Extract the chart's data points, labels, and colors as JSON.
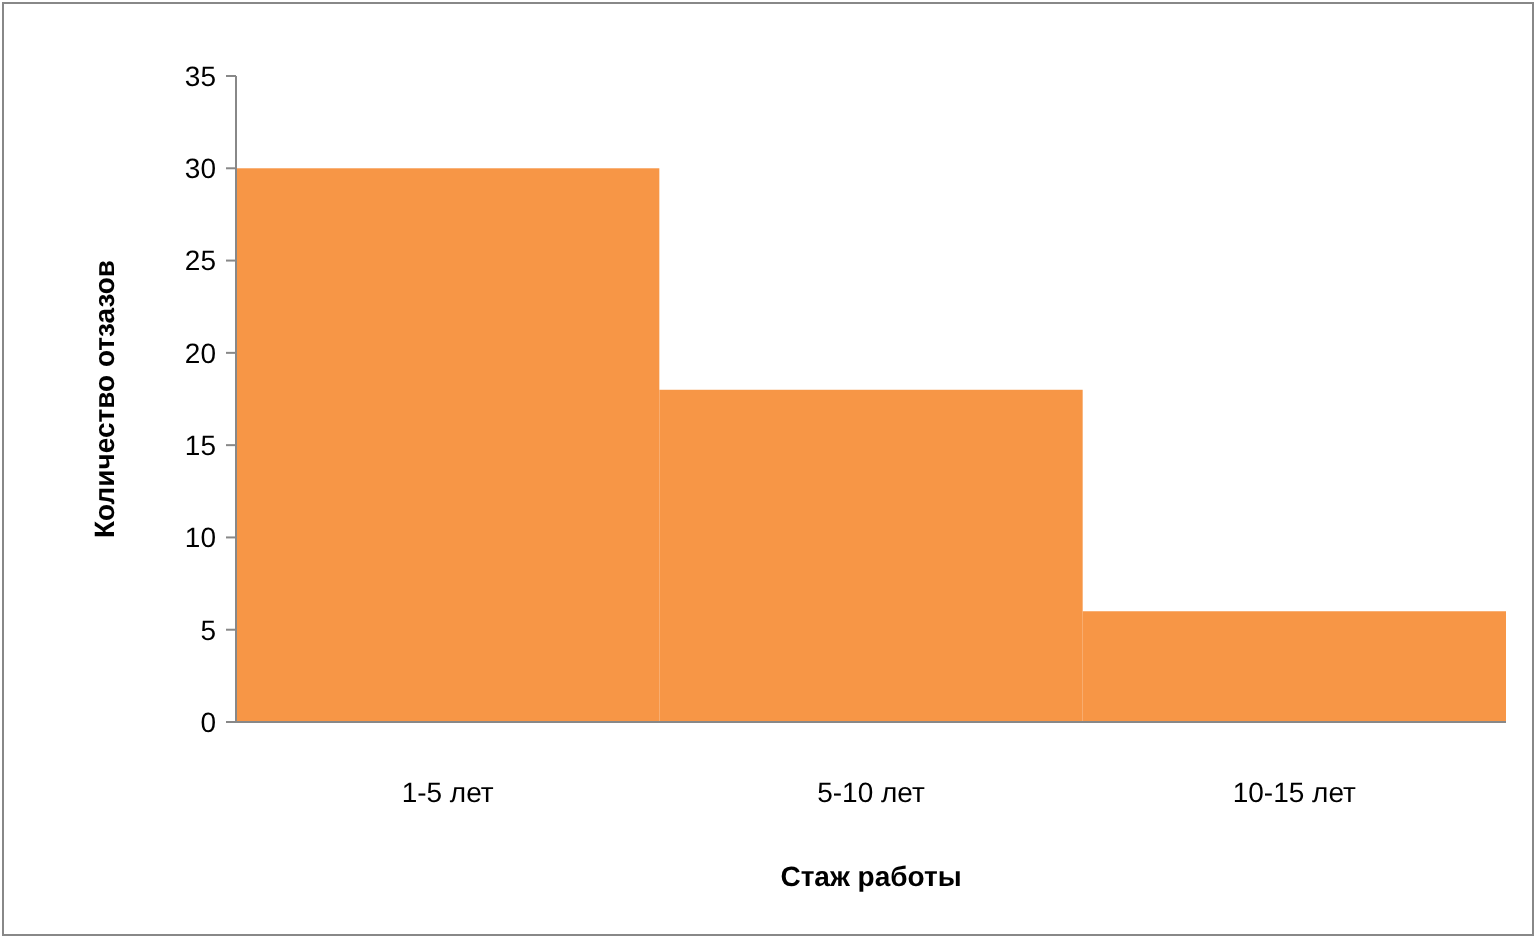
{
  "chart_data": {
    "type": "bar",
    "xlabel": "Стаж работы",
    "ylabel": "Количество отзазов",
    "categories": [
      "1-5 лет",
      "5-10 лет",
      "10-15 лет"
    ],
    "values": [
      30,
      18,
      6
    ],
    "color": "#f79646",
    "ylim": [
      0,
      35
    ],
    "yticks": [
      0,
      5,
      10,
      15,
      20,
      25,
      30,
      35
    ],
    "grid": false
  }
}
